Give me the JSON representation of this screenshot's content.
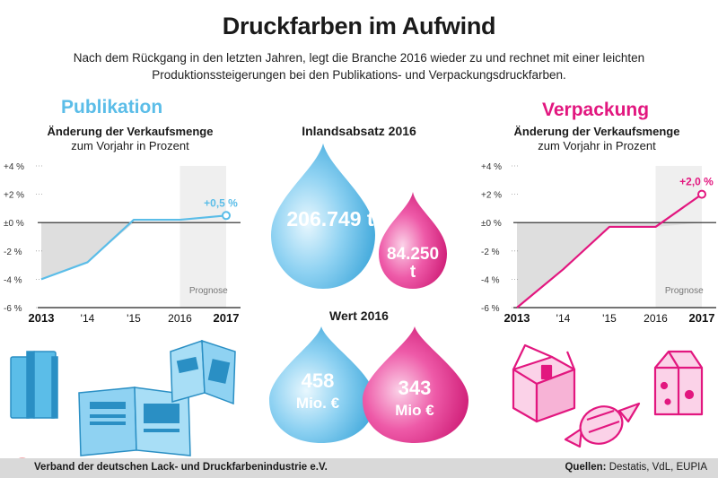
{
  "header": {
    "title": "Druckfarben im Aufwind",
    "subtitle_line1": "Nach dem Rückgang in den letzten Jahren, legt die Branche 2016 wieder zu und rechnet mit einer leichten",
    "subtitle_line2": "Produktionssteigerungen bei den Publikations- und Verpackungsdruckfarben."
  },
  "publikation": {
    "title": "Publikation",
    "label_bold": "Änderung der Verkaufsmenge",
    "label_rest": "zum Vorjahr in Prozent",
    "color": "#5bbde8"
  },
  "verpackung": {
    "title": "Verpackung",
    "label_bold": "Änderung der Verkaufsmenge",
    "label_rest": "zum Vorjahr in Prozent",
    "color": "#e2177f"
  },
  "middle": {
    "inland_title": "Inlandsabsatz 2016",
    "inland_pub": "206.749 t",
    "inland_ver_line1": "84.250",
    "inland_ver_line2": "t",
    "wert_title": "Wert 2016",
    "wert_pub_line1": "458",
    "wert_pub_line2": "Mio. €",
    "wert_ver_line1": "343",
    "wert_ver_line2": "Mio €"
  },
  "footer": {
    "left": "Verband der deutschen Lack- und Druckfarbenindustrie e.V.",
    "sources_label": "Quellen:",
    "sources": "Destatis, VdL, EUPIA"
  },
  "chart_data": [
    {
      "type": "line",
      "title": "Publikation",
      "categories": [
        "2013",
        "'14",
        "'15",
        "2016",
        "2017"
      ],
      "series": [
        {
          "values": [
            -4.0,
            -2.8,
            0.2,
            0.2,
            0.5
          ]
        }
      ],
      "ylim": [
        -6,
        4
      ],
      "yticks": [
        "+4 %",
        "+2 %",
        "±0 %",
        "-2 %",
        "-4 %",
        "-6 %"
      ],
      "annotations": [
        "+0,5 %",
        "Prognose"
      ],
      "forecast_category": "2017",
      "grid": false
    },
    {
      "type": "line",
      "title": "Verpackung",
      "categories": [
        "2013",
        "'14",
        "'15",
        "2016",
        "2017"
      ],
      "series": [
        {
          "values": [
            -6.0,
            -3.3,
            -0.3,
            -0.3,
            2.0
          ]
        }
      ],
      "ylim": [
        -6,
        4
      ],
      "yticks": [
        "+4 %",
        "+2 %",
        "±0 %",
        "-2 %",
        "-4 %",
        "-6 %"
      ],
      "annotations": [
        "+2,0 %",
        "Prognose"
      ],
      "forecast_category": "2017",
      "grid": false
    }
  ]
}
